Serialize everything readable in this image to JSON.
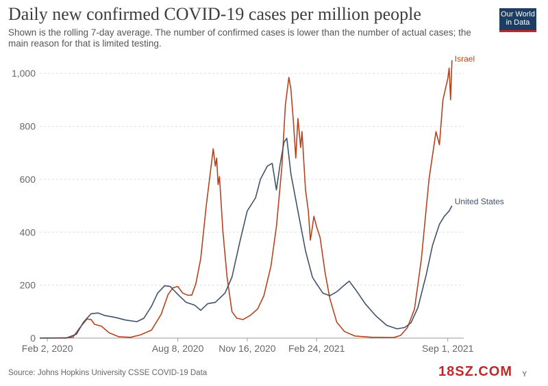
{
  "header": {
    "title": "Daily new confirmed COVID-19 cases per million people",
    "subtitle": "Shown is the rolling 7-day average. The number of confirmed cases is lower than the number of actual cases; the main reason for that is limited testing."
  },
  "logo": {
    "line1": "Our World",
    "line2": "in Data"
  },
  "footer": {
    "source": "Source: Johns Hopkins University CSSE COVID-19 Data"
  },
  "watermark": {
    "text": "18SZ.COM",
    "tail": "Y"
  },
  "colors": {
    "israel": "#b5421c",
    "united_states": "#40506b",
    "grid": "#dddddd",
    "axis": "#666666"
  },
  "chart_data": {
    "type": "line",
    "title": "Daily new confirmed COVID-19 cases per million people",
    "xlabel": "",
    "ylabel": "",
    "x_range": [
      "2020-01-22",
      "2021-09-24"
    ],
    "ylim": [
      0,
      1060
    ],
    "y_ticks": [
      0,
      200,
      400,
      600,
      800,
      1000
    ],
    "y_tick_labels": [
      "0",
      "200",
      "400",
      "600",
      "800",
      "1,000"
    ],
    "x_ticks": [
      "2020-02-02",
      "2020-08-08",
      "2020-11-16",
      "2021-02-24",
      "2021-09-01"
    ],
    "x_tick_labels": [
      "Feb 2, 2020",
      "Aug 8, 2020",
      "Nov 16, 2020",
      "Feb 24, 2021",
      "Sep 1, 2021"
    ],
    "grid": "horizontal dashed",
    "legend": "inline labels at line ends",
    "series": [
      {
        "name": "Israel",
        "points": [
          [
            "2020-01-22",
            0
          ],
          [
            "2020-02-29",
            0
          ],
          [
            "2020-03-10",
            4
          ],
          [
            "2020-03-20",
            40
          ],
          [
            "2020-03-30",
            72
          ],
          [
            "2020-04-05",
            70
          ],
          [
            "2020-04-10",
            52
          ],
          [
            "2020-04-20",
            45
          ],
          [
            "2020-05-01",
            20
          ],
          [
            "2020-05-15",
            5
          ],
          [
            "2020-06-01",
            3
          ],
          [
            "2020-06-15",
            12
          ],
          [
            "2020-07-01",
            30
          ],
          [
            "2020-07-15",
            90
          ],
          [
            "2020-07-25",
            165
          ],
          [
            "2020-08-01",
            190
          ],
          [
            "2020-08-08",
            195
          ],
          [
            "2020-08-15",
            170
          ],
          [
            "2020-08-22",
            162
          ],
          [
            "2020-08-28",
            162
          ],
          [
            "2020-09-03",
            205
          ],
          [
            "2020-09-10",
            300
          ],
          [
            "2020-09-18",
            500
          ],
          [
            "2020-09-25",
            650
          ],
          [
            "2020-09-28",
            715
          ],
          [
            "2020-10-01",
            650
          ],
          [
            "2020-10-03",
            680
          ],
          [
            "2020-10-05",
            580
          ],
          [
            "2020-10-07",
            610
          ],
          [
            "2020-10-12",
            400
          ],
          [
            "2020-10-18",
            230
          ],
          [
            "2020-10-25",
            100
          ],
          [
            "2020-11-01",
            75
          ],
          [
            "2020-11-10",
            70
          ],
          [
            "2020-11-20",
            85
          ],
          [
            "2020-12-01",
            110
          ],
          [
            "2020-12-10",
            160
          ],
          [
            "2020-12-20",
            270
          ],
          [
            "2020-12-28",
            420
          ],
          [
            "2021-01-05",
            650
          ],
          [
            "2021-01-10",
            880
          ],
          [
            "2021-01-15",
            985
          ],
          [
            "2021-01-18",
            940
          ],
          [
            "2021-01-22",
            800
          ],
          [
            "2021-01-25",
            680
          ],
          [
            "2021-01-28",
            830
          ],
          [
            "2021-02-01",
            720
          ],
          [
            "2021-02-03",
            780
          ],
          [
            "2021-02-08",
            560
          ],
          [
            "2021-02-12",
            480
          ],
          [
            "2021-02-15",
            370
          ],
          [
            "2021-02-18",
            420
          ],
          [
            "2021-02-20",
            460
          ],
          [
            "2021-02-24",
            420
          ],
          [
            "2021-03-01",
            380
          ],
          [
            "2021-03-08",
            250
          ],
          [
            "2021-03-15",
            150
          ],
          [
            "2021-03-25",
            60
          ],
          [
            "2021-04-05",
            25
          ],
          [
            "2021-04-20",
            8
          ],
          [
            "2021-05-15",
            3
          ],
          [
            "2021-06-15",
            2
          ],
          [
            "2021-06-25",
            10
          ],
          [
            "2021-07-05",
            40
          ],
          [
            "2021-07-15",
            110
          ],
          [
            "2021-07-25",
            300
          ],
          [
            "2021-08-05",
            600
          ],
          [
            "2021-08-15",
            780
          ],
          [
            "2021-08-20",
            730
          ],
          [
            "2021-08-25",
            900
          ],
          [
            "2021-09-01",
            980
          ],
          [
            "2021-09-03",
            1020
          ],
          [
            "2021-09-05",
            900
          ],
          [
            "2021-09-07",
            1050
          ]
        ]
      },
      {
        "name": "United States",
        "points": [
          [
            "2020-01-22",
            0
          ],
          [
            "2020-03-01",
            1
          ],
          [
            "2020-03-15",
            15
          ],
          [
            "2020-03-25",
            60
          ],
          [
            "2020-04-05",
            92
          ],
          [
            "2020-04-15",
            95
          ],
          [
            "2020-04-25",
            85
          ],
          [
            "2020-05-10",
            78
          ],
          [
            "2020-05-25",
            68
          ],
          [
            "2020-06-10",
            62
          ],
          [
            "2020-06-20",
            75
          ],
          [
            "2020-07-01",
            120
          ],
          [
            "2020-07-10",
            170
          ],
          [
            "2020-07-20",
            198
          ],
          [
            "2020-07-28",
            195
          ],
          [
            "2020-08-08",
            165
          ],
          [
            "2020-08-20",
            135
          ],
          [
            "2020-09-01",
            125
          ],
          [
            "2020-09-10",
            105
          ],
          [
            "2020-09-20",
            130
          ],
          [
            "2020-10-01",
            135
          ],
          [
            "2020-10-15",
            170
          ],
          [
            "2020-10-25",
            230
          ],
          [
            "2020-11-05",
            360
          ],
          [
            "2020-11-16",
            480
          ],
          [
            "2020-11-28",
            530
          ],
          [
            "2020-12-05",
            600
          ],
          [
            "2020-12-15",
            650
          ],
          [
            "2020-12-22",
            660
          ],
          [
            "2020-12-28",
            560
          ],
          [
            "2021-01-02",
            650
          ],
          [
            "2021-01-08",
            740
          ],
          [
            "2021-01-12",
            755
          ],
          [
            "2021-01-18",
            620
          ],
          [
            "2021-01-28",
            480
          ],
          [
            "2021-02-08",
            330
          ],
          [
            "2021-02-18",
            230
          ],
          [
            "2021-02-24",
            205
          ],
          [
            "2021-03-05",
            170
          ],
          [
            "2021-03-15",
            160
          ],
          [
            "2021-03-25",
            175
          ],
          [
            "2021-04-05",
            200
          ],
          [
            "2021-04-12",
            215
          ],
          [
            "2021-04-22",
            180
          ],
          [
            "2021-05-05",
            130
          ],
          [
            "2021-05-20",
            85
          ],
          [
            "2021-06-05",
            48
          ],
          [
            "2021-06-20",
            35
          ],
          [
            "2021-07-01",
            40
          ],
          [
            "2021-07-10",
            58
          ],
          [
            "2021-07-20",
            115
          ],
          [
            "2021-08-01",
            240
          ],
          [
            "2021-08-10",
            350
          ],
          [
            "2021-08-20",
            430
          ],
          [
            "2021-08-27",
            460
          ],
          [
            "2021-09-03",
            480
          ],
          [
            "2021-09-07",
            500
          ]
        ]
      }
    ]
  }
}
